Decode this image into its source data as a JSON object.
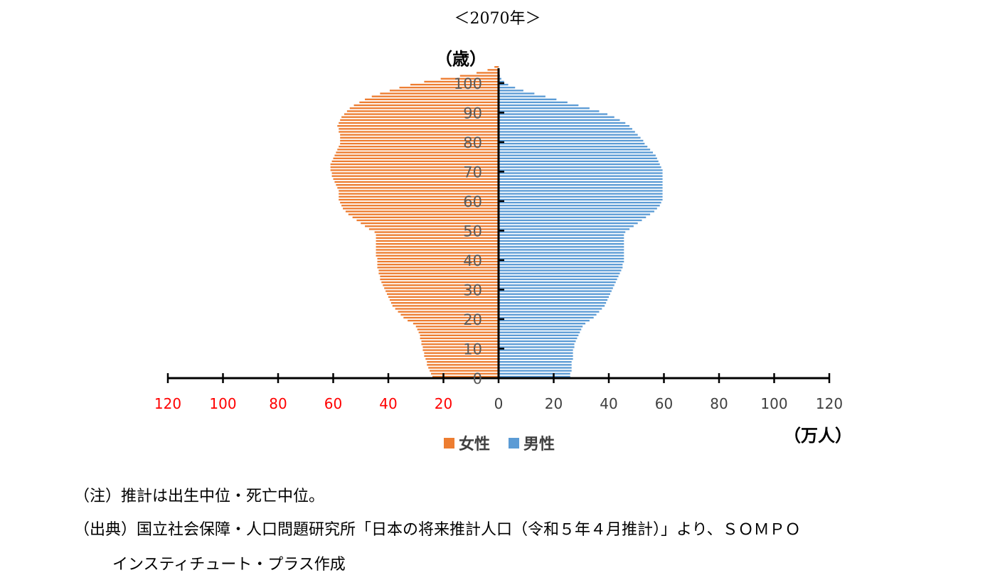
{
  "title": "＜2070年＞",
  "chart_data": {
    "type": "bar",
    "orientation": "horizontal-population-pyramid",
    "ylabel": "（歳）",
    "xlabel": "（万人）",
    "y_ticks": [
      "0",
      "10",
      "20",
      "30",
      "40",
      "50",
      "60",
      "70",
      "80",
      "90",
      "100"
    ],
    "x_ticks_left": [
      "120",
      "100",
      "80",
      "60",
      "40",
      "20"
    ],
    "x_ticks_right": [
      "0",
      "20",
      "40",
      "60",
      "80",
      "100",
      "120"
    ],
    "xlim": [
      -120,
      120
    ],
    "ylim": [
      0,
      105
    ],
    "age_groups": "ages 0-105, one value per year",
    "series": [
      {
        "name": "女性",
        "color": "#ED7D31",
        "values": [
          24,
          24.5,
          25,
          25.5,
          26,
          26,
          26.5,
          27,
          27,
          27.5,
          27.5,
          28,
          28,
          28.5,
          28.5,
          29,
          29.5,
          30,
          31,
          33,
          34.5,
          35.5,
          36.5,
          37.5,
          38.5,
          39,
          39.5,
          40,
          40.5,
          41,
          41.5,
          42,
          42.5,
          43,
          43,
          43.5,
          43.5,
          44,
          44,
          44,
          44,
          44.5,
          44.5,
          44.5,
          44.5,
          44.5,
          44.5,
          44.5,
          44.5,
          45,
          47,
          48.5,
          50,
          51.5,
          53,
          54.5,
          55.5,
          56.5,
          57,
          57.5,
          58,
          58,
          58,
          58,
          58.5,
          59,
          59.5,
          60,
          60.5,
          60.5,
          61,
          61,
          61,
          60.5,
          60,
          59.5,
          59,
          58.5,
          58,
          57.5,
          57.5,
          57.5,
          57.5,
          58,
          58,
          58.5,
          58,
          57.5,
          57,
          56,
          55,
          54,
          52.5,
          50.5,
          48.5,
          46,
          43,
          39.5,
          36,
          32,
          27,
          21,
          14,
          8,
          4,
          1.5
        ]
      },
      {
        "name": "男性",
        "color": "#5B9BD5",
        "values": [
          26,
          26,
          26.5,
          26.5,
          26.5,
          26.5,
          27,
          27,
          27,
          27,
          27.5,
          27.5,
          28,
          28.5,
          29,
          29.5,
          30,
          30.5,
          31.5,
          33,
          34.5,
          35.5,
          36.5,
          37.5,
          38.5,
          39,
          39.5,
          40,
          40.5,
          41,
          41.5,
          42,
          42.5,
          43,
          43.5,
          44,
          44.5,
          45,
          45,
          45.5,
          45.5,
          45.5,
          45.5,
          45.5,
          45.5,
          45.5,
          45.5,
          45.5,
          45.5,
          46,
          47.5,
          49,
          50.5,
          52,
          53.5,
          55,
          56.5,
          57.5,
          58.5,
          59,
          59.5,
          59.5,
          59.5,
          59.5,
          59.5,
          59.5,
          59.5,
          59.5,
          59.5,
          59.5,
          59.5,
          59,
          58.5,
          58,
          57.5,
          57,
          56,
          55,
          54,
          53,
          52.5,
          51.5,
          50.5,
          49.5,
          48.5,
          47.5,
          46,
          44,
          42,
          39.5,
          36.5,
          33,
          29,
          25,
          21,
          17,
          13,
          9,
          6,
          3.5,
          2,
          1,
          0.5,
          0.3,
          0.2,
          0.1
        ]
      }
    ],
    "legend": [
      "女性",
      "男性"
    ],
    "legend_position": "bottom-center",
    "left_tick_color": "#FF0000",
    "right_tick_color": "#404040"
  },
  "notes": [
    "（注）推計は出生中位・死亡中位。",
    "（出典）国立社会保障・人口問題研究所「日本の将来推計人口（令和５年４月推計）」より、ＳＯＭＰＯ",
    "インスティチュート・プラス作成"
  ]
}
